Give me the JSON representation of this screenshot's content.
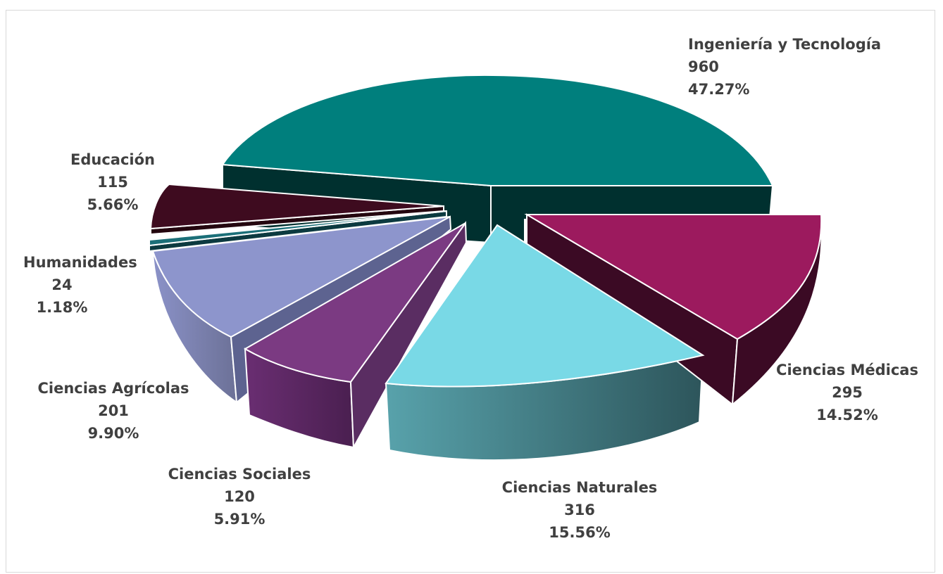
{
  "chart_data": {
    "type": "pie",
    "title": "",
    "style": "3d-exploded",
    "slices": [
      {
        "label": "Ingeniería y Tecnología",
        "value": 960,
        "percent": "47.27%",
        "color": "#007F7D",
        "side_color": "#00302F"
      },
      {
        "label": "Ciencias Médicas",
        "value": 295,
        "percent": "14.52%",
        "color": "#9C1A5E",
        "side_color": "#3B0A24"
      },
      {
        "label": "Ciencias Naturales",
        "value": 316,
        "percent": "15.56%",
        "color": "#79D9E6",
        "side_color": "#3E7A82"
      },
      {
        "label": "Ciencias Sociales",
        "value": 120,
        "percent": "5.91%",
        "color": "#7B3A82",
        "side_color": "#4E2354"
      },
      {
        "label": "Ciencias Agrícolas",
        "value": 201,
        "percent": "9.90%",
        "color": "#8D95CC",
        "side_color": "#5D6390"
      },
      {
        "label": "Humanidades",
        "value": 24,
        "percent": "1.18%",
        "color": "#1B6F78",
        "side_color": "#0C3A40"
      },
      {
        "label": "Educación",
        "value": 115,
        "percent": "5.66%",
        "color": "#3E0B1F",
        "side_color": "#24060F"
      }
    ]
  }
}
